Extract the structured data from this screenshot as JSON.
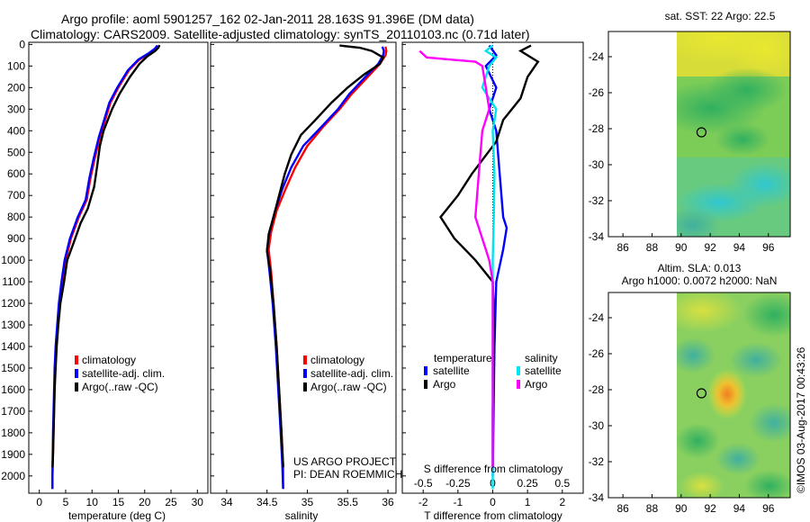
{
  "header": {
    "title_line1": "Argo profile: aoml 5901257_162 02-Jan-2011 28.163S 91.396E (DM data)",
    "title_line2": "Climatology: CARS2009. Satellite-adjusted climatology: synTS_20110103.nc (0.71d later)"
  },
  "colors": {
    "climatology": "#ff0000",
    "satellite": "#0000ff",
    "argo": "#000000",
    "argo_salinity": "#ff00ff",
    "salinity_satellite": "#00e5ee"
  },
  "chart_data": [
    {
      "type": "line",
      "id": "temperature",
      "xlabel": "temperature (deg C)",
      "ylabel": "",
      "xlim": [
        -2,
        32
      ],
      "ylim": [
        2080,
        -10
      ],
      "xticks": [
        0,
        5,
        10,
        15,
        20,
        25,
        30
      ],
      "yticks": [
        0,
        100,
        200,
        300,
        400,
        500,
        600,
        700,
        800,
        900,
        1000,
        1100,
        1200,
        1300,
        1400,
        1500,
        1600,
        1700,
        1800,
        1900,
        2000
      ],
      "legend": [
        "climatology",
        "satellite-adj. clim.",
        "Argo(..raw -QC)"
      ],
      "series": [
        {
          "name": "climatology",
          "color": "#ff0000",
          "points": [
            [
              22.5,
              5
            ],
            [
              22,
              20
            ],
            [
              21,
              40
            ],
            [
              19,
              70
            ],
            [
              17,
              120
            ],
            [
              15,
              200
            ],
            [
              13.5,
              270
            ],
            [
              12.5,
              350
            ],
            [
              11.5,
              430
            ],
            [
              10.5,
              530
            ],
            [
              9.7,
              620
            ],
            [
              9,
              720
            ],
            [
              7.5,
              800
            ],
            [
              6,
              900
            ],
            [
              5,
              1000
            ],
            [
              4.3,
              1100
            ],
            [
              3.8,
              1200
            ],
            [
              3.5,
              1300
            ],
            [
              3.2,
              1400
            ],
            [
              3,
              1500
            ],
            [
              2.9,
              1600
            ],
            [
              2.8,
              1700
            ],
            [
              2.7,
              1800
            ],
            [
              2.6,
              1900
            ],
            [
              2.5,
              2000
            ],
            [
              2.5,
              2060
            ]
          ]
        },
        {
          "name": "satellite-adj. clim.",
          "color": "#0000ff",
          "points": [
            [
              22.4,
              5
            ],
            [
              21.9,
              20
            ],
            [
              20.8,
              40
            ],
            [
              18.8,
              70
            ],
            [
              16.8,
              120
            ],
            [
              14.8,
              200
            ],
            [
              13.3,
              270
            ],
            [
              12.3,
              350
            ],
            [
              11.3,
              430
            ],
            [
              10.3,
              530
            ],
            [
              9.5,
              620
            ],
            [
              8.8,
              720
            ],
            [
              7.3,
              800
            ],
            [
              5.8,
              900
            ],
            [
              4.8,
              1000
            ],
            [
              4.2,
              1100
            ],
            [
              3.7,
              1200
            ],
            [
              3.4,
              1300
            ],
            [
              3.1,
              1400
            ],
            [
              2.9,
              1500
            ],
            [
              2.8,
              1600
            ],
            [
              2.7,
              1700
            ],
            [
              2.6,
              1800
            ],
            [
              2.55,
              1900
            ],
            [
              2.5,
              2000
            ],
            [
              2.5,
              2060
            ]
          ]
        },
        {
          "name": "Argo(..raw -QC)",
          "color": "#000000",
          "points": [
            [
              22.8,
              3
            ],
            [
              22.6,
              15
            ],
            [
              22,
              30
            ],
            [
              20.5,
              55
            ],
            [
              19,
              90
            ],
            [
              17.2,
              150
            ],
            [
              15.2,
              230
            ],
            [
              13.8,
              300
            ],
            [
              12.2,
              400
            ],
            [
              11.5,
              470
            ],
            [
              11,
              560
            ],
            [
              10.4,
              660
            ],
            [
              9.2,
              760
            ],
            [
              7.8,
              830
            ],
            [
              6.5,
              920
            ],
            [
              5.3,
              1000
            ],
            [
              4.7,
              1100
            ],
            [
              4,
              1200
            ],
            [
              3.6,
              1300
            ],
            [
              3.3,
              1400
            ],
            [
              3.1,
              1500
            ],
            [
              2.9,
              1600
            ],
            [
              2.8,
              1700
            ],
            [
              2.7,
              1800
            ],
            [
              2.6,
              1900
            ],
            [
              2.5,
              1960
            ]
          ]
        }
      ]
    },
    {
      "type": "line",
      "id": "salinity",
      "xlabel": "salinity",
      "ylabel": "",
      "xlim": [
        33.8,
        36.1
      ],
      "ylim": [
        2080,
        -10
      ],
      "xticks": [
        34,
        34.5,
        35,
        35.5,
        36
      ],
      "legend": [
        "climatology",
        "satellite-adj. clim.",
        "Argo(..raw -QC)"
      ],
      "annotation": [
        "US ARGO PROJECT",
        "PI: DEAN ROEMMICH"
      ],
      "series": [
        {
          "name": "climatology",
          "color": "#ff0000",
          "points": [
            [
              35.97,
              10
            ],
            [
              35.98,
              30
            ],
            [
              35.97,
              50
            ],
            [
              35.9,
              90
            ],
            [
              35.75,
              150
            ],
            [
              35.55,
              230
            ],
            [
              35.4,
              300
            ],
            [
              35.2,
              380
            ],
            [
              35.0,
              470
            ],
            [
              34.85,
              570
            ],
            [
              34.73,
              670
            ],
            [
              34.62,
              770
            ],
            [
              34.55,
              870
            ],
            [
              34.52,
              950
            ],
            [
              34.55,
              1050
            ],
            [
              34.58,
              1200
            ],
            [
              34.62,
              1400
            ],
            [
              34.65,
              1600
            ],
            [
              34.68,
              1800
            ],
            [
              34.7,
              1950
            ],
            [
              34.7,
              2060
            ]
          ]
        },
        {
          "name": "satellite-adj. clim.",
          "color": "#0000ff",
          "points": [
            [
              35.93,
              10
            ],
            [
              35.95,
              30
            ],
            [
              35.94,
              50
            ],
            [
              35.88,
              90
            ],
            [
              35.72,
              150
            ],
            [
              35.52,
              230
            ],
            [
              35.38,
              300
            ],
            [
              35.18,
              380
            ],
            [
              34.95,
              470
            ],
            [
              34.8,
              570
            ],
            [
              34.69,
              670
            ],
            [
              34.6,
              770
            ],
            [
              34.53,
              870
            ],
            [
              34.5,
              950
            ],
            [
              34.53,
              1050
            ],
            [
              34.57,
              1200
            ],
            [
              34.61,
              1400
            ],
            [
              34.64,
              1600
            ],
            [
              34.67,
              1800
            ],
            [
              34.69,
              1950
            ],
            [
              34.7,
              2060
            ]
          ]
        },
        {
          "name": "Argo(..raw -QC)",
          "color": "#000000",
          "points": [
            [
              35.4,
              5
            ],
            [
              35.65,
              15
            ],
            [
              35.8,
              30
            ],
            [
              35.94,
              60
            ],
            [
              35.9,
              90
            ],
            [
              35.7,
              140
            ],
            [
              35.5,
              200
            ],
            [
              35.3,
              270
            ],
            [
              35.1,
              350
            ],
            [
              34.92,
              420
            ],
            [
              34.8,
              510
            ],
            [
              34.72,
              600
            ],
            [
              34.65,
              700
            ],
            [
              34.58,
              800
            ],
            [
              34.52,
              880
            ],
            [
              34.5,
              960
            ],
            [
              34.54,
              1050
            ],
            [
              34.58,
              1200
            ],
            [
              34.62,
              1400
            ],
            [
              34.65,
              1600
            ],
            [
              34.68,
              1800
            ],
            [
              34.7,
              1960
            ]
          ]
        }
      ]
    },
    {
      "type": "line",
      "id": "differences",
      "xlabel": "T difference from climatology",
      "xlabel_top": "S difference from climatology",
      "xlim": [
        -2.6,
        2.6
      ],
      "ylim": [
        2080,
        -10
      ],
      "xticks": [
        -2,
        -1,
        0,
        1,
        2
      ],
      "xtick_labels_top": [
        "-0.5",
        "-0.25",
        "0",
        "0.25",
        "0.5"
      ],
      "legend_temperature": {
        "heading": "temperature",
        "entries": [
          "satellite",
          "Argo"
        ]
      },
      "legend_salinity": {
        "heading": "salinity",
        "entries": [
          "satellite",
          "Argo"
        ]
      },
      "series": [
        {
          "name": "temperature satellite",
          "color": "#0000ff",
          "points": [
            [
              -0.1,
              5
            ],
            [
              0.1,
              50
            ],
            [
              -0.2,
              100
            ],
            [
              0.1,
              200
            ],
            [
              -0.1,
              300
            ],
            [
              0.1,
              400
            ],
            [
              0.2,
              600
            ],
            [
              0.3,
              800
            ],
            [
              0.4,
              850
            ],
            [
              0.3,
              950
            ],
            [
              0.1,
              1100
            ],
            [
              0.05,
              1400
            ],
            [
              0,
              2000
            ]
          ]
        },
        {
          "name": "temperature Argo",
          "color": "#000000",
          "points": [
            [
              1.1,
              5
            ],
            [
              0.8,
              30
            ],
            [
              1.3,
              80
            ],
            [
              1.0,
              150
            ],
            [
              0.8,
              250
            ],
            [
              0.3,
              350
            ],
            [
              0.1,
              450
            ],
            [
              -0.6,
              600
            ],
            [
              -1.0,
              700
            ],
            [
              -1.5,
              800
            ],
            [
              -1.1,
              900
            ],
            [
              -0.5,
              1000
            ],
            [
              0.0,
              1100
            ],
            [
              0.05,
              1300
            ],
            [
              0.03,
              1500
            ],
            [
              0,
              1700
            ],
            [
              0,
              1960
            ]
          ]
        },
        {
          "name": "salinity satellite",
          "color": "#00e5ee",
          "points": [
            [
              0,
              5
            ],
            [
              -0.2,
              30
            ],
            [
              0.1,
              60
            ],
            [
              -0.1,
              100
            ],
            [
              -0.3,
              200
            ],
            [
              0.1,
              300
            ],
            [
              0,
              400
            ],
            [
              0.05,
              600
            ],
            [
              0.03,
              800
            ],
            [
              0,
              1000
            ],
            [
              0,
              2060
            ]
          ]
        },
        {
          "name": "salinity Argo",
          "color": "#ff00ff",
          "points": [
            [
              -2.1,
              30
            ],
            [
              -1.9,
              60
            ],
            [
              -0.5,
              80
            ],
            [
              -0.3,
              100
            ],
            [
              -0.2,
              200
            ],
            [
              -0.1,
              300
            ],
            [
              -0.3,
              400
            ],
            [
              -0.4,
              600
            ],
            [
              -0.5,
              800
            ],
            [
              -0.3,
              900
            ],
            [
              -0.1,
              1000
            ],
            [
              0,
              1100
            ],
            [
              0,
              1960
            ]
          ]
        }
      ]
    }
  ],
  "maps": [
    {
      "id": "sst-map",
      "title": "sat. SST: 22 Argo: 22.5",
      "xticks": [
        "86",
        "88",
        "90",
        "92",
        "94",
        "96"
      ],
      "yticks": [
        "-24",
        "-26",
        "-28",
        "-30",
        "-32",
        "-34"
      ],
      "lon_range": [
        85,
        97.5
      ],
      "lat_range": [
        -34,
        -22.6
      ],
      "marker": {
        "lon": 91.4,
        "lat": -28.2
      }
    },
    {
      "id": "sla-map",
      "title_line1": "Altim. SLA: 0.013",
      "title_line2": "Argo h1000: 0.0072 h2000: NaN",
      "xticks": [
        "86",
        "88",
        "90",
        "92",
        "94",
        "96"
      ],
      "yticks": [
        "-24",
        "-26",
        "-28",
        "-30",
        "-32",
        "-34"
      ],
      "lon_range": [
        85,
        97.5
      ],
      "lat_range": [
        -34,
        -22.6
      ],
      "marker": {
        "lon": 91.4,
        "lat": -28.2
      }
    }
  ],
  "footer": {
    "credit": "©IMOS 03-Aug-2017 00:43:26"
  }
}
